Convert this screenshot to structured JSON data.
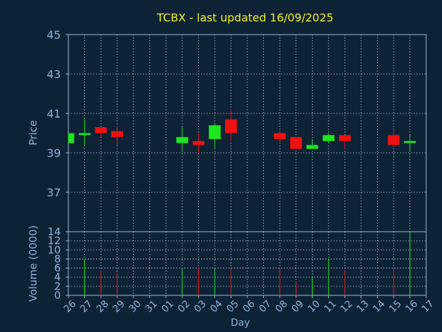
{
  "chart_data": {
    "type": "candlestick",
    "title": "TCBX - last updated 16/09/2025",
    "xlabel": "Day",
    "price_panel": {
      "ylabel": "Price",
      "ylim": [
        35,
        45
      ],
      "yticks": [
        37,
        39,
        41,
        43,
        45
      ]
    },
    "volume_panel": {
      "ylabel": "Volume (0000)",
      "ylim": [
        0,
        14
      ],
      "yticks": [
        0,
        2,
        4,
        6,
        8,
        10,
        12,
        14
      ]
    },
    "categories": [
      "26",
      "27",
      "28",
      "29",
      "30",
      "31",
      "01",
      "02",
      "03",
      "04",
      "05",
      "06",
      "07",
      "08",
      "09",
      "10",
      "11",
      "12",
      "13",
      "14",
      "15",
      "16",
      "17"
    ],
    "series": [
      {
        "day": "26",
        "open": 39.5,
        "high": 40.0,
        "low": 39.5,
        "close": 40.0,
        "volume": 0
      },
      {
        "day": "27",
        "open": 39.9,
        "high": 40.7,
        "low": 39.4,
        "close": 40.0,
        "volume": 8
      },
      {
        "day": "28",
        "open": 40.3,
        "high": 40.3,
        "low": 39.8,
        "close": 40.0,
        "volume": 5.5
      },
      {
        "day": "29",
        "open": 40.1,
        "high": 40.4,
        "low": 39.4,
        "close": 39.8,
        "volume": 5
      },
      {
        "day": "02",
        "open": 39.5,
        "high": 40.3,
        "low": 39.1,
        "close": 39.8,
        "volume": 6
      },
      {
        "day": "03",
        "open": 39.6,
        "high": 40.0,
        "low": 39.0,
        "close": 39.4,
        "volume": 6
      },
      {
        "day": "04",
        "open": 39.7,
        "high": 40.5,
        "low": 39.2,
        "close": 40.4,
        "volume": 6
      },
      {
        "day": "05",
        "open": 40.7,
        "high": 41.2,
        "low": 39.6,
        "close": 40.0,
        "volume": 6
      },
      {
        "day": "08",
        "open": 40.0,
        "high": 40.1,
        "low": 39.5,
        "close": 39.7,
        "volume": 6
      },
      {
        "day": "09",
        "open": 39.8,
        "high": 39.8,
        "low": 39.2,
        "close": 39.2,
        "volume": 3
      },
      {
        "day": "10",
        "open": 39.2,
        "high": 39.7,
        "low": 39.2,
        "close": 39.4,
        "volume": 4
      },
      {
        "day": "11",
        "open": 39.6,
        "high": 40.0,
        "low": 39.5,
        "close": 39.9,
        "volume": 8
      },
      {
        "day": "12",
        "open": 39.9,
        "high": 39.9,
        "low": 39.2,
        "close": 39.6,
        "volume": 5.5
      },
      {
        "day": "15",
        "open": 39.9,
        "high": 40.2,
        "low": 39.3,
        "close": 39.4,
        "volume": 6
      },
      {
        "day": "16",
        "open": 39.5,
        "high": 39.9,
        "low": 39.1,
        "close": 39.6,
        "volume": 14
      }
    ],
    "grid": true,
    "legend": "none"
  },
  "colors": {
    "background": "#0e2236",
    "up": "#1ee61e",
    "down": "#ee1111",
    "title": "#f2f21b",
    "axis_text": "#8fb4d8",
    "frame": "#9fb9d6",
    "grid": "#c8d4e0"
  }
}
